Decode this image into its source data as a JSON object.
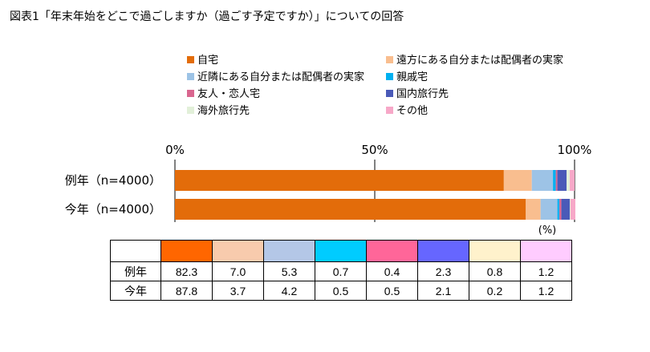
{
  "title": "図表1「年末年始をどこで過ごしますか（過ごす予定ですか）」についての回答",
  "chart_data": {
    "type": "bar",
    "orientation": "horizontal",
    "stacked": true,
    "percent": true,
    "categories": [
      "例年（n=4000）",
      "今年（n=4000）"
    ],
    "xticks": [
      "0%",
      "50%",
      "100%"
    ],
    "xlim": [
      0,
      100
    ],
    "unit_label": "(%)",
    "legend_position": "top",
    "series": [
      {
        "name": "自宅",
        "color": "#E36C0A",
        "table_color": "#FF6600",
        "values": [
          82.3,
          87.8
        ]
      },
      {
        "name": "遠方にある自分または配偶者の実家",
        "color": "#F9BE8F",
        "table_color": "#F8CBAD",
        "values": [
          7.0,
          3.7
        ]
      },
      {
        "name": "近隣にある自分または配偶者の実家",
        "color": "#9DC3E6",
        "table_color": "#B4C7E7",
        "values": [
          5.3,
          4.2
        ]
      },
      {
        "name": "親戚宅",
        "color": "#00B0F0",
        "table_color": "#00CCFF",
        "values": [
          0.7,
          0.5
        ]
      },
      {
        "name": "友人・恋人宅",
        "color": "#D9668F",
        "table_color": "#FF6699",
        "values": [
          0.4,
          0.5
        ]
      },
      {
        "name": "国内旅行先",
        "color": "#4A5AB8",
        "table_color": "#6666FF",
        "values": [
          2.3,
          2.1
        ]
      },
      {
        "name": "海外旅行先",
        "color": "#E2F0D9",
        "table_color": "#FFF2CC",
        "values": [
          0.8,
          0.2
        ]
      },
      {
        "name": "その他",
        "color": "#F7A8C8",
        "table_color": "#FFCCFF",
        "values": [
          1.2,
          1.2
        ]
      }
    ],
    "table": {
      "row_labels": [
        "例年",
        "今年"
      ],
      "rows": [
        [
          "82.3",
          "7.0",
          "5.3",
          "0.7",
          "0.4",
          "2.3",
          "0.8",
          "1.2"
        ],
        [
          "87.8",
          "3.7",
          "4.2",
          "0.5",
          "0.5",
          "2.1",
          "0.2",
          "1.2"
        ]
      ]
    }
  }
}
